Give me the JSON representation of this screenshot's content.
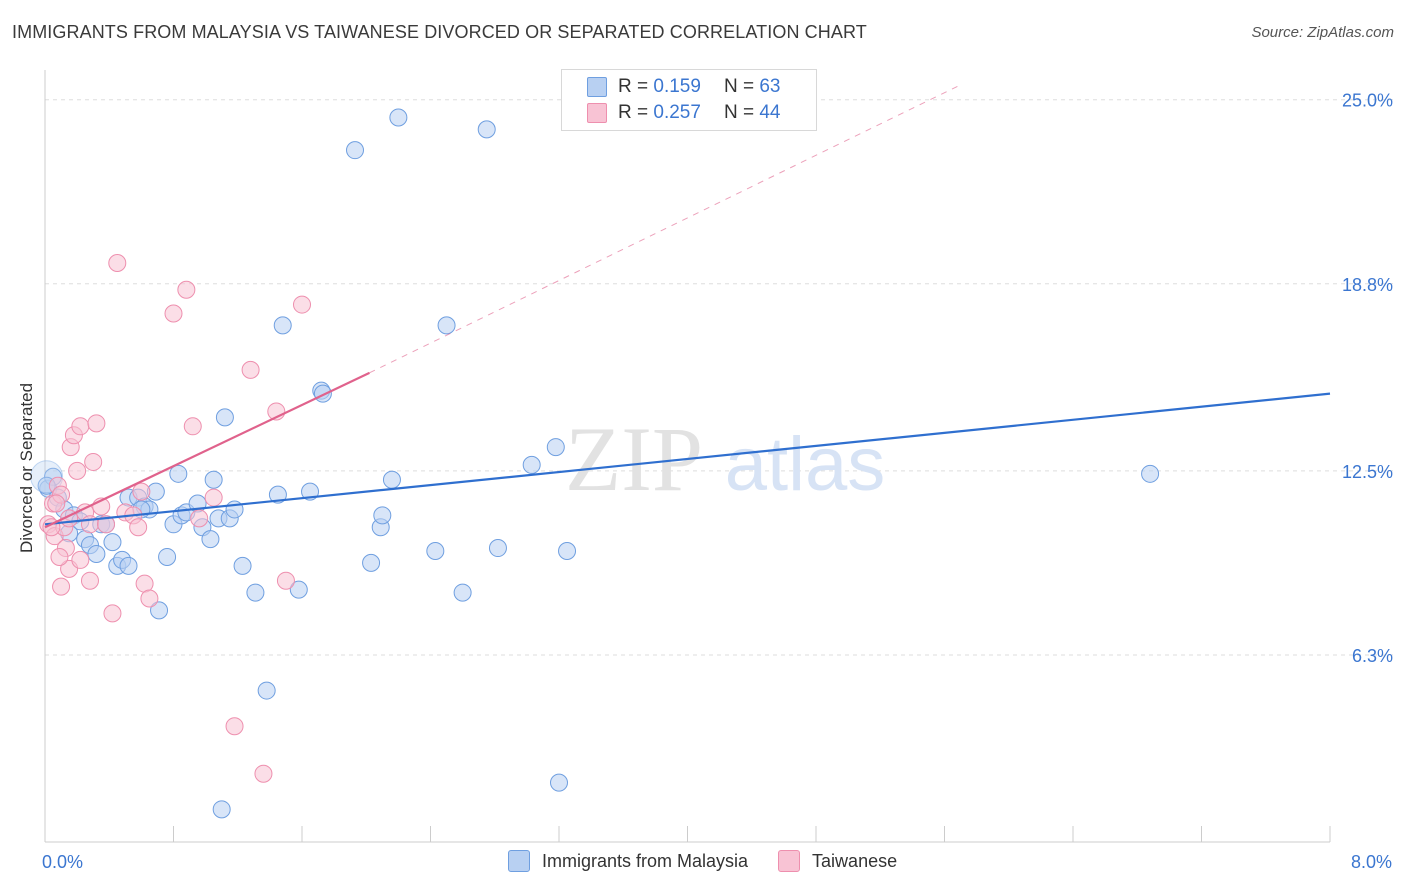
{
  "title": "IMMIGRANTS FROM MALAYSIA VS TAIWANESE DIVORCED OR SEPARATED CORRELATION CHART",
  "source": "Source: ZipAtlas.com",
  "watermark": {
    "zip": "ZIP",
    "atlas": "atlas"
  },
  "legend_top": [
    {
      "r_label": "R =",
      "r_value": "0.159",
      "n_label": "N =",
      "n_value": "63"
    },
    {
      "r_label": "R =",
      "r_value": "0.257",
      "n_label": "N =",
      "n_value": "44"
    }
  ],
  "legend_bottom": [
    "Immigrants from Malaysia",
    "Taiwanese"
  ],
  "colors": {
    "blue_fill": "#b8d0f2",
    "blue_stroke": "#6f9fe0",
    "blue_line": "#2f6fcf",
    "pink_fill": "#f8c3d4",
    "pink_stroke": "#ee8fae",
    "pink_line": "#e0628c",
    "tick_text": "#3b76d0",
    "grid": "#dedede"
  },
  "chart_data": {
    "type": "scatter",
    "title": "IMMIGRANTS FROM MALAYSIA VS TAIWANESE DIVORCED OR SEPARATED CORRELATION CHART",
    "xlabel": "",
    "ylabel": "Divorced or Separated",
    "xlim": [
      0.0,
      8.0
    ],
    "ylim": [
      0.0,
      26.0
    ],
    "x_tick_labels": [
      "0.0%",
      "8.0%"
    ],
    "y_ticks": [
      6.3,
      12.5,
      18.8,
      25.0
    ],
    "y_tick_labels": [
      "6.3%",
      "12.5%",
      "18.8%",
      "25.0%"
    ],
    "grid": true,
    "series": [
      {
        "name": "Immigrants from Malaysia",
        "color": "blue",
        "points": [
          [
            0.02,
            11.9
          ],
          [
            0.05,
            12.3
          ],
          [
            0.08,
            11.6
          ],
          [
            0.12,
            11.2
          ],
          [
            0.15,
            10.4
          ],
          [
            0.18,
            11.0
          ],
          [
            0.22,
            10.8
          ],
          [
            0.25,
            10.2
          ],
          [
            0.28,
            10.0
          ],
          [
            0.32,
            9.7
          ],
          [
            0.35,
            10.7
          ],
          [
            0.38,
            10.7
          ],
          [
            0.42,
            10.1
          ],
          [
            0.45,
            9.3
          ],
          [
            0.48,
            9.5
          ],
          [
            0.52,
            9.3
          ],
          [
            0.52,
            11.6
          ],
          [
            0.58,
            11.6
          ],
          [
            0.62,
            11.3
          ],
          [
            0.65,
            11.2
          ],
          [
            0.69,
            11.8
          ],
          [
            0.71,
            7.8
          ],
          [
            0.76,
            9.6
          ],
          [
            0.8,
            10.7
          ],
          [
            0.83,
            12.4
          ],
          [
            0.85,
            11.0
          ],
          [
            0.88,
            11.1
          ],
          [
            0.95,
            11.4
          ],
          [
            0.98,
            10.6
          ],
          [
            1.03,
            10.2
          ],
          [
            1.05,
            12.2
          ],
          [
            1.08,
            10.9
          ],
          [
            1.12,
            14.3
          ],
          [
            1.15,
            10.9
          ],
          [
            1.18,
            11.2
          ],
          [
            1.23,
            9.3
          ],
          [
            1.31,
            8.4
          ],
          [
            1.38,
            5.1
          ],
          [
            1.45,
            11.7
          ],
          [
            1.48,
            17.4
          ],
          [
            1.58,
            8.5
          ],
          [
            1.65,
            11.8
          ],
          [
            1.72,
            15.2
          ],
          [
            1.73,
            15.1
          ],
          [
            1.93,
            23.3
          ],
          [
            2.03,
            9.4
          ],
          [
            2.09,
            10.6
          ],
          [
            2.1,
            11.0
          ],
          [
            2.16,
            12.2
          ],
          [
            2.2,
            24.4
          ],
          [
            2.43,
            9.8
          ],
          [
            2.5,
            17.4
          ],
          [
            2.6,
            8.4
          ],
          [
            2.75,
            24.0
          ],
          [
            2.82,
            9.9
          ],
          [
            3.03,
            12.7
          ],
          [
            3.18,
            13.3
          ],
          [
            3.2,
            2.0
          ],
          [
            3.25,
            9.8
          ],
          [
            6.88,
            12.4
          ],
          [
            1.1,
            1.1
          ],
          [
            0.01,
            12.0
          ],
          [
            0.6,
            11.2
          ]
        ]
      },
      {
        "name": "Taiwanese",
        "color": "pink",
        "points": [
          [
            0.02,
            10.7
          ],
          [
            0.05,
            11.4
          ],
          [
            0.06,
            10.3
          ],
          [
            0.08,
            12.0
          ],
          [
            0.1,
            11.7
          ],
          [
            0.12,
            10.6
          ],
          [
            0.13,
            9.9
          ],
          [
            0.15,
            9.2
          ],
          [
            0.16,
            13.3
          ],
          [
            0.18,
            13.7
          ],
          [
            0.2,
            12.5
          ],
          [
            0.22,
            14.0
          ],
          [
            0.25,
            11.1
          ],
          [
            0.28,
            10.7
          ],
          [
            0.3,
            12.8
          ],
          [
            0.32,
            14.1
          ],
          [
            0.35,
            11.3
          ],
          [
            0.38,
            10.7
          ],
          [
            0.42,
            7.7
          ],
          [
            0.45,
            19.5
          ],
          [
            0.5,
            11.1
          ],
          [
            0.55,
            11.0
          ],
          [
            0.58,
            10.6
          ],
          [
            0.62,
            8.7
          ],
          [
            0.65,
            8.2
          ],
          [
            0.8,
            17.8
          ],
          [
            0.88,
            18.6
          ],
          [
            0.92,
            14.0
          ],
          [
            0.96,
            10.9
          ],
          [
            1.05,
            11.6
          ],
          [
            1.18,
            3.9
          ],
          [
            1.28,
            15.9
          ],
          [
            1.36,
            2.3
          ],
          [
            1.44,
            14.5
          ],
          [
            1.5,
            8.8
          ],
          [
            1.6,
            18.1
          ],
          [
            0.07,
            11.4
          ],
          [
            0.1,
            8.6
          ],
          [
            0.04,
            10.6
          ],
          [
            0.22,
            9.5
          ],
          [
            0.28,
            8.8
          ],
          [
            0.15,
            10.9
          ],
          [
            0.09,
            9.6
          ],
          [
            0.6,
            11.8
          ]
        ]
      }
    ],
    "trend_lines": [
      {
        "series": "Immigrants from Malaysia",
        "x": [
          0.0,
          8.0
        ],
        "y": [
          10.7,
          15.1
        ]
      },
      {
        "series": "Taiwanese",
        "x": [
          0.0,
          2.02
        ],
        "y": [
          10.6,
          15.8
        ],
        "dashed_extension_to": [
          5.7,
          25.5
        ]
      }
    ]
  }
}
